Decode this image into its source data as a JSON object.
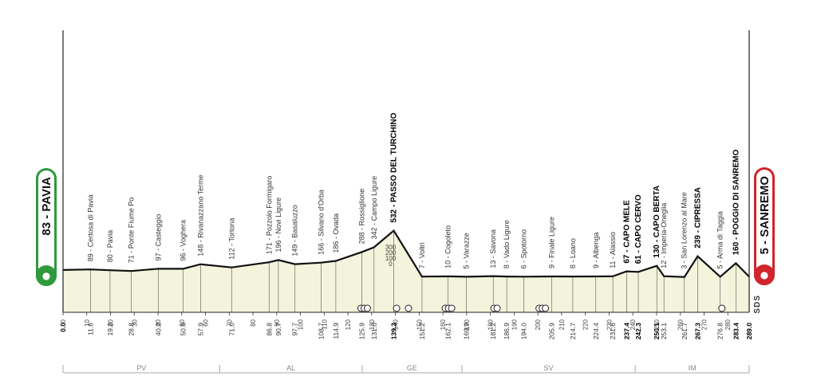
{
  "badges": {
    "start": "83 - PAVIA",
    "finish": "5 - SANREMO",
    "start_icon": "cyclist-icon",
    "finish_icon": "cyclist-icon"
  },
  "brand": "SDS",
  "colors": {
    "start": "#2e9a3d",
    "finish": "#d0252b",
    "fill": "#f4f4dc",
    "line": "#111111"
  },
  "chart_data": {
    "type": "area",
    "xlabel": "",
    "ylabel": "",
    "xlim": [
      0,
      289
    ],
    "ylim": [
      0,
      600
    ],
    "grid": false,
    "legend": "none",
    "x_ticks": [
      0,
      10,
      20,
      30,
      40,
      50,
      60,
      70,
      80,
      90,
      100,
      110,
      120,
      130,
      140,
      150,
      160,
      170,
      180,
      190,
      200,
      210,
      220,
      230,
      240,
      250,
      260,
      270,
      280
    ],
    "x": [
      0,
      11.6,
      19.8,
      28.8,
      40.2,
      50.6,
      57.9,
      71.0,
      86.8,
      90.7,
      97.7,
      108.7,
      114.9,
      125.9,
      131.0,
      139.3,
      151.2,
      162.1,
      169.9,
      181.2,
      186.9,
      194.0,
      205.9,
      214.7,
      224.4,
      231.6,
      237.4,
      242.3,
      250.1,
      253.1,
      261.7,
      267.3,
      276.8,
      283.4,
      289.0
    ],
    "elevation": [
      83,
      89,
      80,
      71,
      97,
      96,
      148,
      112,
      171,
      196,
      149,
      166,
      186,
      288,
      342,
      532,
      7,
      10,
      5,
      13,
      8,
      6,
      9,
      8,
      9,
      11,
      67,
      61,
      130,
      12,
      3,
      239,
      5,
      160,
      5
    ],
    "places": [
      "PAVIA",
      "Certosa di Pavia",
      "Pavia",
      "Ponte Fiume Po",
      "Casteggio",
      "Voghera",
      "Rivanazzano Terme",
      "Tortona",
      "Pozzolo Formigaro",
      "Novi Ligure",
      "Basaluzzo",
      "Silvano d'Orba",
      "Ovada",
      "Rossiglione",
      "Campo Ligure",
      "PASSO DEL TURCHINO",
      "Voltri",
      "Cogoleto",
      "Varazze",
      "Savona",
      "Vado Ligure",
      "Spotorno",
      "Finale Ligure",
      "Loano",
      "Albenga",
      "Alassio",
      "CAPO MELE",
      "CAPO CERVO",
      "CAPO BERTA",
      "Imperia-Oneglia",
      "San Lorenzo al Mare",
      "CIPRESSA",
      "Arma di Taggia",
      "POGGIO DI SANREMO",
      "SANREMO"
    ],
    "km_labels": [
      "0.0",
      "11.6",
      "19.8",
      "28.8",
      "40.2",
      "50.6",
      "57.9",
      "71.0",
      "86.8",
      "90.7",
      "97.7",
      "108.7",
      "114.9",
      "125.9",
      "131.0",
      "139.3",
      "151.2",
      "162.1",
      "169.9",
      "181.2",
      "186.9",
      "194.0",
      "205.9",
      "214.7",
      "224.4",
      "231.6",
      "237.4",
      "242.3",
      "250.1",
      "253.1",
      "261.7",
      "267.3",
      "276.8",
      "283.4",
      "289.0"
    ],
    "major": [
      0,
      15,
      26,
      27,
      28,
      31,
      33,
      34
    ],
    "altitude_scale": [
      "300",
      "200",
      "100",
      "0"
    ],
    "provinces": [
      {
        "name": "PV",
        "from": 0,
        "to": 66
      },
      {
        "name": "AL",
        "from": 66,
        "to": 126
      },
      {
        "name": "GE",
        "from": 126,
        "to": 168
      },
      {
        "name": "SV",
        "from": 168,
        "to": 241
      },
      {
        "name": "IM",
        "from": 241,
        "to": 289
      }
    ]
  }
}
